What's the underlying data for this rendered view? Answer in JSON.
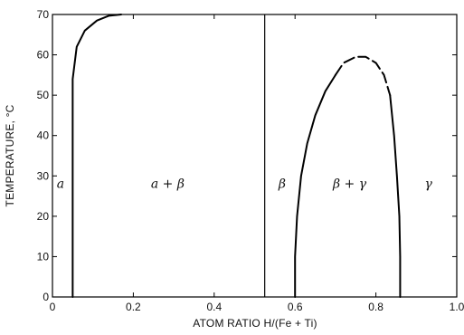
{
  "chart_data": {
    "type": "line",
    "xlabel": "ATOM RATIO H/(Fe + Ti)",
    "ylabel": "TEMPERATURE, °C",
    "xlim": [
      0,
      1.0
    ],
    "ylim": [
      0,
      70
    ],
    "x_ticks": [
      "0",
      "0.2",
      "0.4",
      "0.6",
      "0.8",
      "1.0"
    ],
    "y_ticks": [
      "0",
      "10",
      "20",
      "30",
      "40",
      "50",
      "60",
      "70"
    ],
    "grid": false,
    "series": [
      {
        "style": "solid",
        "x": [
          0.05,
          0.05,
          0.05,
          0.06,
          0.08,
          0.11,
          0.14,
          0.17
        ],
        "y": [
          0,
          30,
          54,
          62,
          66,
          68.5,
          69.7,
          70
        ]
      },
      {
        "style": "solid",
        "x": [
          0.525,
          0.525
        ],
        "y": [
          0,
          70
        ]
      },
      {
        "style": "solid",
        "x": [
          0.6,
          0.6,
          0.605,
          0.615,
          0.63,
          0.65,
          0.675,
          0.7
        ],
        "y": [
          0,
          10,
          20,
          30,
          38,
          45,
          51,
          55
        ]
      },
      {
        "style": "dashed",
        "x": [
          0.7,
          0.72,
          0.75,
          0.775,
          0.8,
          0.82,
          0.835
        ],
        "y": [
          55,
          58,
          59.5,
          59.5,
          58,
          55,
          50
        ]
      },
      {
        "style": "solid",
        "x": [
          0.835,
          0.845,
          0.852,
          0.858,
          0.86,
          0.86
        ],
        "y": [
          50,
          40,
          30,
          20,
          10,
          0
        ]
      }
    ],
    "annotations": [
      {
        "text": "a",
        "x": 0.02,
        "y": 27
      },
      {
        "text": "a + β",
        "x": 0.285,
        "y": 27
      },
      {
        "text": "β",
        "x": 0.568,
        "y": 27
      },
      {
        "text": "β + γ",
        "x": 0.735,
        "y": 27
      },
      {
        "text": "γ",
        "x": 0.93,
        "y": 27
      }
    ]
  }
}
